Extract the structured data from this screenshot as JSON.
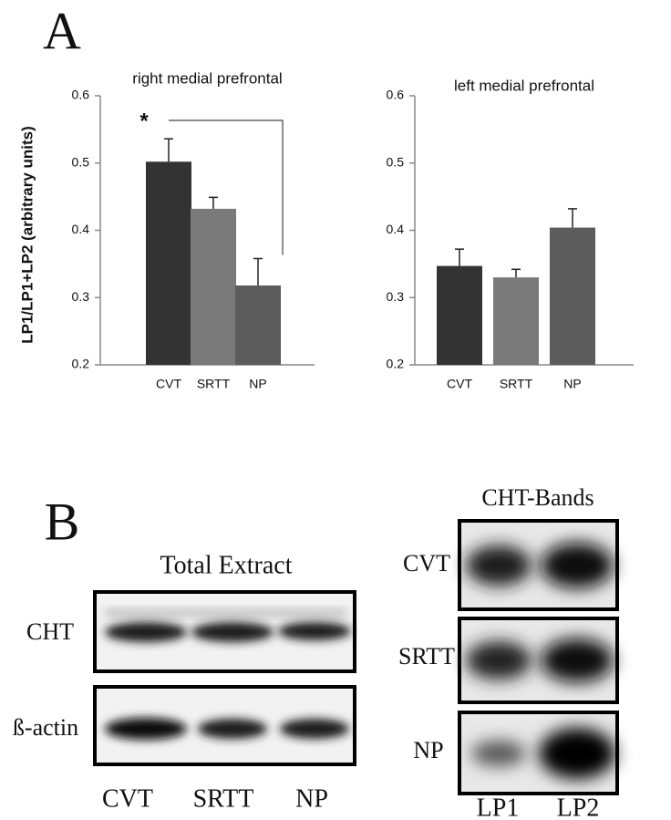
{
  "panel_labels": [
    "A",
    "B"
  ],
  "chart_data": [
    {
      "type": "bar",
      "title": "right medial prefrontal",
      "y_label": "LP1/LP1+LP2 (arbitrary units)",
      "categories": [
        "CVT",
        "SRTT",
        "NP"
      ],
      "values": [
        0.502,
        0.432,
        0.318
      ],
      "errors": [
        0.034,
        0.017,
        0.04
      ],
      "colors": [
        "#333333",
        "#7a7a7a",
        "#5c5c5c"
      ],
      "ylim": [
        0.2,
        0.6
      ],
      "yticks": [
        0.2,
        0.3,
        0.4,
        0.5,
        0.6
      ],
      "annotation": "*"
    },
    {
      "type": "bar",
      "title": "left medial prefrontal",
      "categories": [
        "CVT",
        "SRTT",
        "NP"
      ],
      "values": [
        0.347,
        0.33,
        0.404
      ],
      "errors": [
        0.025,
        0.012,
        0.028
      ],
      "colors": [
        "#333333",
        "#7a7a7a",
        "#5c5c5c"
      ],
      "ylim": [
        0.2,
        0.6
      ],
      "yticks": [
        0.2,
        0.3,
        0.4,
        0.5,
        0.6
      ]
    }
  ],
  "blots": {
    "total_extract": {
      "title": "Total Extract",
      "rows": [
        "CHT",
        "ß-actin"
      ],
      "lanes": [
        "CVT",
        "SRTT",
        "NP"
      ]
    },
    "cht_bands": {
      "title": "CHT-Bands",
      "rows": [
        "CVT",
        "SRTT",
        "NP"
      ],
      "lanes": [
        "LP1",
        "LP2"
      ]
    }
  }
}
